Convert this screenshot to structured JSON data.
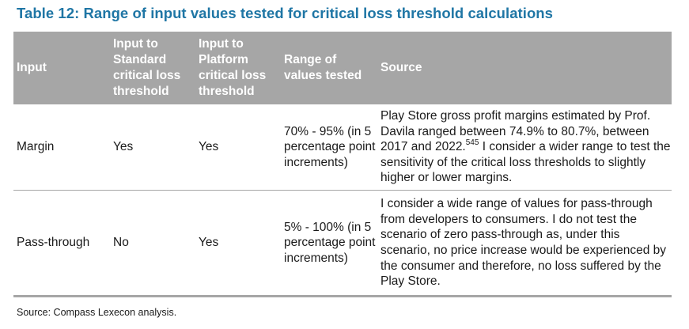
{
  "title": "Table 12: Range of input values tested for critical loss threshold calculations",
  "table": {
    "headers": [
      "Input",
      "Input to Standard critical loss threshold",
      "Input to Platform critical loss threshold",
      "Range of values tested",
      "Source"
    ],
    "rows": [
      {
        "input": "Margin",
        "standard": "Yes",
        "platform": "Yes",
        "range": "70% - 95% (in 5 percentage point increments)",
        "source_before": "Play Store gross profit margins estimated by Prof. Davila ranged between 74.9% to 80.7%, between 2017 and 2022.",
        "source_footnote": "545",
        "source_after": " I consider a wider range to test the sensitivity of the critical loss thresholds to slightly higher or lower margins."
      },
      {
        "input": "Pass-through",
        "standard": "No",
        "platform": "Yes",
        "range": "5% - 100% (in 5 percentage point increments)",
        "source": "I consider a wide range of values for pass-through from developers to consumers. I do not test the scenario of zero pass-through as, under this scenario, no price increase would be experienced by the consumer and therefore, no loss suffered by the Play Store."
      }
    ]
  },
  "source_note": "Source: Compass Lexecon analysis.",
  "colors": {
    "title": "#1f76a5",
    "header_background": "#a6a6a6",
    "header_text": "#ffffff",
    "rule": "#a6a6a6"
  }
}
